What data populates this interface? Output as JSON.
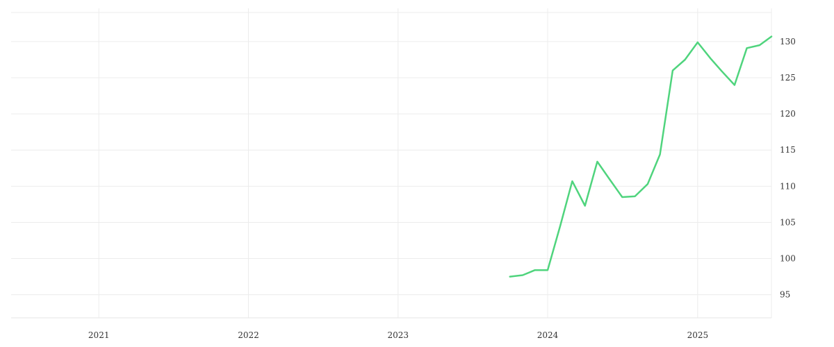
{
  "chart_data": {
    "type": "line",
    "title": "",
    "xlabel": "",
    "ylabel": "",
    "x_axis": {
      "type": "date",
      "range": [
        "2020-06-01",
        "2025-06-30"
      ],
      "ticks": [
        "2021",
        "2022",
        "2023",
        "2024",
        "2025"
      ]
    },
    "y_axis": {
      "range": [
        91.8,
        134.6
      ],
      "ticks": [
        95,
        100,
        105,
        110,
        115,
        120,
        125,
        130
      ],
      "position": "right"
    },
    "grid": true,
    "legend": "none",
    "colors": {
      "series": "#4fd47d",
      "grid": "#ececec",
      "text": "#333333"
    },
    "series": [
      {
        "x": [
          "2023-10-01",
          "2023-11-01",
          "2023-12-01",
          "2024-01-01",
          "2024-02-01",
          "2024-03-01",
          "2024-04-01",
          "2024-05-01",
          "2024-06-01",
          "2024-07-01",
          "2024-08-01",
          "2024-09-01",
          "2024-10-01",
          "2024-11-01",
          "2024-12-01",
          "2025-01-01",
          "2025-02-01",
          "2025-03-01",
          "2025-04-01",
          "2025-05-01",
          "2025-06-01",
          "2025-06-30"
        ],
        "y": [
          97.5,
          97.7,
          98.4,
          98.4,
          104.6,
          110.7,
          107.3,
          113.4,
          110.9,
          108.5,
          108.6,
          110.3,
          114.4,
          126.0,
          127.5,
          129.9,
          127.7,
          125.9,
          124.0,
          129.1,
          129.5,
          130.7
        ]
      }
    ]
  }
}
